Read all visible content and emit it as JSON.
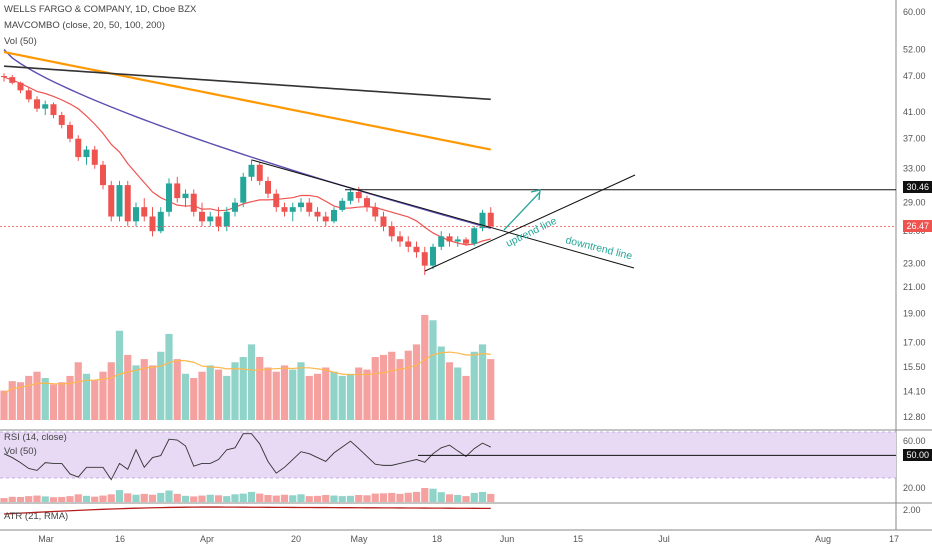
{
  "header": {
    "symbol_line": "WELLS FARGO & COMPANY, 1D, Cboe BZX",
    "ma_line": "MAVCOMBO (close, 20, 50, 100, 200)",
    "vol_line": "Vol (50)",
    "rsi_line": "RSI (14, close)",
    "rsi_vol_line": "Vol (50)",
    "atr_line": "ATR (21, RMA)"
  },
  "price_axis": [
    "60.00",
    "52.00",
    "47.00",
    "41.00",
    "37.00",
    "33.00",
    "29.00",
    "26.00",
    "23.00",
    "21.00",
    "19.00",
    "17.00",
    "15.50",
    "14.10",
    "12.80"
  ],
  "rsi_axis": [
    "60.00",
    "20.00"
  ],
  "atr_axis": [
    "2.00"
  ],
  "time_axis": [
    "Mar",
    "16",
    "Apr",
    "20",
    "May",
    "18",
    "Jun",
    "15",
    "Jul",
    "Aug",
    "17"
  ],
  "tags": {
    "resistance": "30.46",
    "last_price": "26.47",
    "rsi_level": "50.00"
  },
  "annotations": {
    "uptrend": "uptrend line",
    "downtrend": "downtrend line"
  },
  "colors": {
    "up": "#26a69a",
    "down": "#ef5350",
    "ma20": "#ef5350",
    "ma50": "#5b4fb0",
    "ma100": "#ff9800",
    "ma200": "#333333",
    "arrow": "#26a69a",
    "rsi_band": "#e8d9f5"
  },
  "chart_data": {
    "type": "candlestick",
    "ticker": "WELLS FARGO & COMPANY",
    "interval": "1D",
    "exchange": "Cboe BZX",
    "resistance_level": 30.46,
    "last_price": 26.47,
    "candles": [
      [
        47.0,
        47.5,
        46.0,
        46.8
      ],
      [
        46.8,
        47.2,
        45.5,
        45.8
      ],
      [
        45.8,
        46.0,
        44.0,
        44.5
      ],
      [
        44.5,
        45.0,
        42.5,
        43.0
      ],
      [
        43.0,
        43.5,
        41.0,
        41.5
      ],
      [
        41.5,
        42.8,
        40.5,
        42.2
      ],
      [
        42.2,
        42.5,
        40.0,
        40.5
      ],
      [
        40.5,
        41.0,
        38.5,
        39.0
      ],
      [
        39.0,
        39.5,
        36.5,
        37.0
      ],
      [
        37.0,
        37.5,
        34.0,
        34.5
      ],
      [
        34.5,
        36.0,
        33.5,
        35.5
      ],
      [
        35.5,
        36.0,
        33.0,
        33.5
      ],
      [
        33.5,
        34.0,
        30.5,
        31.0
      ],
      [
        31.0,
        31.5,
        27.0,
        27.5
      ],
      [
        27.5,
        31.5,
        27.0,
        31.0
      ],
      [
        31.0,
        31.5,
        26.5,
        27.0
      ],
      [
        27.0,
        29.0,
        26.5,
        28.5
      ],
      [
        28.5,
        29.5,
        27.0,
        27.5
      ],
      [
        27.5,
        28.5,
        25.5,
        26.0
      ],
      [
        26.0,
        28.5,
        25.8,
        28.0
      ],
      [
        28.0,
        31.8,
        27.5,
        31.2
      ],
      [
        31.2,
        32.0,
        29.0,
        29.5
      ],
      [
        29.5,
        30.5,
        28.5,
        30.0
      ],
      [
        30.0,
        30.5,
        27.5,
        28.0
      ],
      [
        28.0,
        29.0,
        26.5,
        27.0
      ],
      [
        27.0,
        28.0,
        26.5,
        27.5
      ],
      [
        27.5,
        28.5,
        26.0,
        26.5
      ],
      [
        26.5,
        28.5,
        26.0,
        28.0
      ],
      [
        28.0,
        29.5,
        27.5,
        29.0
      ],
      [
        29.0,
        32.5,
        28.5,
        32.0
      ],
      [
        32.0,
        34.2,
        31.5,
        33.5
      ],
      [
        33.5,
        33.8,
        31.0,
        31.5
      ],
      [
        31.5,
        32.0,
        29.5,
        30.0
      ],
      [
        30.0,
        30.5,
        28.0,
        28.5
      ],
      [
        28.5,
        29.0,
        27.5,
        28.0
      ],
      [
        28.0,
        29.0,
        27.0,
        28.5
      ],
      [
        28.5,
        29.5,
        28.0,
        29.0
      ],
      [
        29.0,
        29.5,
        27.5,
        28.0
      ],
      [
        28.0,
        28.5,
        27.0,
        27.5
      ],
      [
        27.5,
        28.0,
        26.5,
        27.0
      ],
      [
        27.0,
        28.5,
        26.8,
        28.2
      ],
      [
        28.2,
        29.5,
        28.0,
        29.2
      ],
      [
        29.2,
        30.5,
        28.8,
        30.2
      ],
      [
        30.2,
        30.8,
        29.0,
        29.5
      ],
      [
        29.5,
        29.8,
        28.0,
        28.5
      ],
      [
        28.5,
        29.0,
        27.0,
        27.5
      ],
      [
        27.5,
        28.0,
        26.0,
        26.5
      ],
      [
        26.5,
        27.0,
        25.0,
        25.5
      ],
      [
        25.5,
        26.0,
        24.5,
        25.0
      ],
      [
        25.0,
        25.5,
        24.0,
        24.5
      ],
      [
        24.5,
        25.0,
        23.5,
        24.0
      ],
      [
        24.0,
        24.5,
        22.0,
        22.8
      ],
      [
        22.8,
        24.8,
        22.5,
        24.5
      ],
      [
        24.5,
        26.0,
        24.2,
        25.5
      ],
      [
        25.5,
        25.8,
        24.5,
        25.0
      ],
      [
        25.0,
        25.5,
        24.5,
        25.2
      ],
      [
        25.2,
        25.4,
        24.6,
        24.8
      ],
      [
        24.8,
        26.5,
        24.6,
        26.3
      ],
      [
        26.3,
        28.2,
        26.0,
        27.9
      ],
      [
        27.9,
        28.5,
        26.3,
        26.5
      ]
    ],
    "volume_relative": [
      0.28,
      0.37,
      0.36,
      0.42,
      0.46,
      0.4,
      0.34,
      0.36,
      0.42,
      0.55,
      0.44,
      0.38,
      0.46,
      0.55,
      0.85,
      0.62,
      0.52,
      0.58,
      0.52,
      0.65,
      0.82,
      0.58,
      0.44,
      0.4,
      0.46,
      0.52,
      0.48,
      0.42,
      0.55,
      0.6,
      0.72,
      0.6,
      0.5,
      0.46,
      0.52,
      0.48,
      0.55,
      0.42,
      0.44,
      0.5,
      0.46,
      0.42,
      0.44,
      0.5,
      0.48,
      0.6,
      0.62,
      0.65,
      0.58,
      0.66,
      0.72,
      1.0,
      0.95,
      0.7,
      0.55,
      0.5,
      0.42,
      0.65,
      0.72,
      0.58
    ],
    "rsi_level": 50.0
  }
}
